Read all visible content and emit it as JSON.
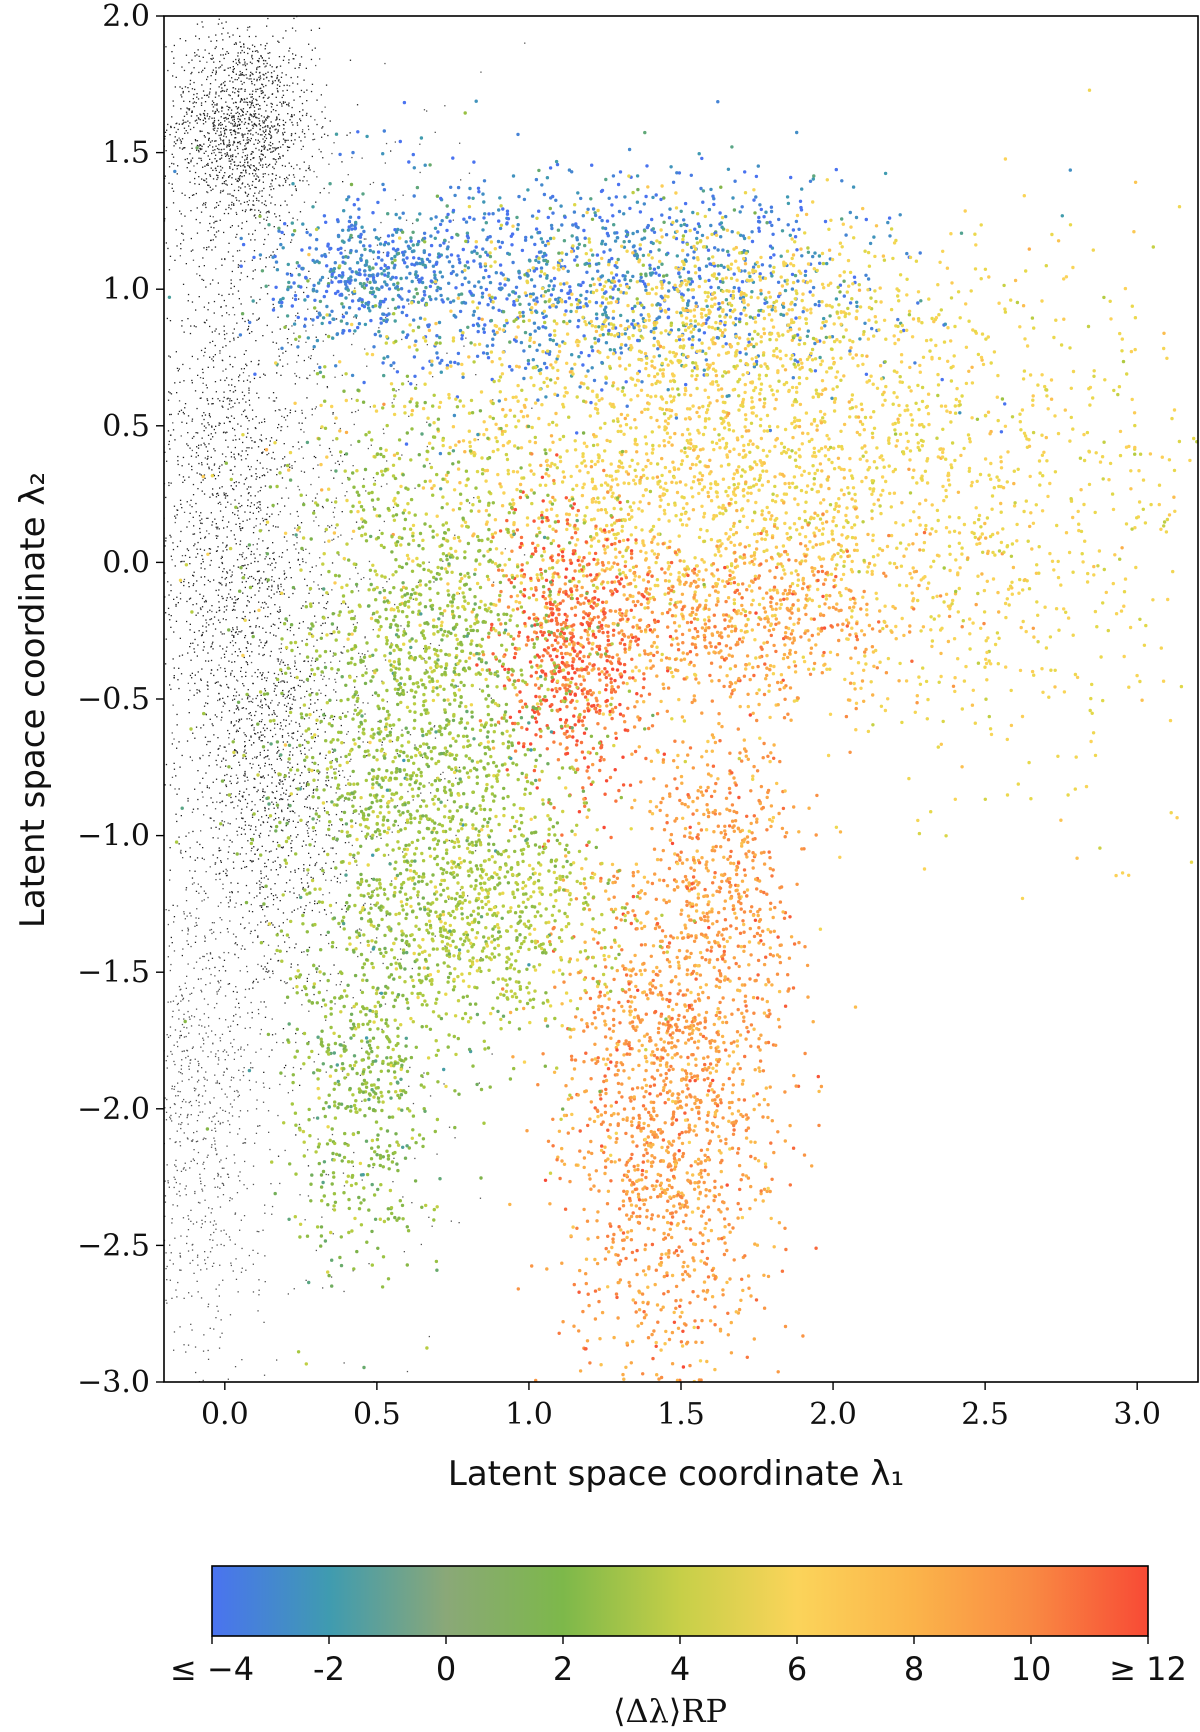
{
  "chart_data": {
    "type": "scatter",
    "xlabel": "Latent space coordinate λ₁",
    "ylabel": "Latent space coordinate λ₂",
    "xlim": [
      -0.2,
      3.2
    ],
    "ylim": [
      -3.0,
      2.0
    ],
    "x_ticks": [
      "0.0",
      "0.5",
      "1.0",
      "1.5",
      "2.0",
      "2.5",
      "3.0"
    ],
    "y_ticks": [
      "2.0",
      "1.5",
      "1.0",
      "0.5",
      "0.0",
      "−0.5",
      "−1.0",
      "−1.5",
      "−2.0",
      "−2.5",
      "−3.0"
    ],
    "background_series": {
      "color": "#000000",
      "clusters": [
        {
          "cx": 0.05,
          "cy": 1.6,
          "sx": 0.12,
          "sy": 0.18,
          "n": 1400
        },
        {
          "cx": 0.0,
          "cy": 0.2,
          "sx": 0.15,
          "sy": 0.6,
          "n": 1500
        },
        {
          "cx": 0.15,
          "cy": -0.8,
          "sx": 0.12,
          "sy": 0.4,
          "n": 900
        },
        {
          "cx": -0.1,
          "cy": -2.0,
          "sx": 0.12,
          "sy": 0.5,
          "n": 900
        },
        {
          "cx": 0.3,
          "cy": -0.3,
          "sx": 0.25,
          "sy": 1.2,
          "n": 1000
        }
      ]
    },
    "colored_clusters": [
      {
        "name": "blue upper band",
        "cx": 1.2,
        "cy": 1.05,
        "sx": 0.5,
        "sy": 0.2,
        "value": -3,
        "n": 1300
      },
      {
        "name": "blue left",
        "cx": 0.45,
        "cy": 1.05,
        "sx": 0.15,
        "sy": 0.12,
        "value": -3,
        "n": 350
      },
      {
        "name": "yellow fan",
        "cx": 1.6,
        "cy": 0.3,
        "sx": 0.55,
        "sy": 0.35,
        "value": 5.5,
        "n": 2200
      },
      {
        "name": "yellow tail",
        "cx": 2.6,
        "cy": 0.1,
        "sx": 0.35,
        "sy": 0.5,
        "value": 5,
        "n": 500
      },
      {
        "name": "yellow upper",
        "cx": 1.6,
        "cy": 0.9,
        "sx": 0.4,
        "sy": 0.2,
        "value": 5,
        "n": 700
      },
      {
        "name": "red knee",
        "cx": 1.15,
        "cy": -0.3,
        "sx": 0.12,
        "sy": 0.25,
        "value": 11,
        "n": 700
      },
      {
        "name": "orange arm",
        "cx": 1.7,
        "cy": -0.2,
        "sx": 0.3,
        "sy": 0.15,
        "value": 9,
        "n": 600
      },
      {
        "name": "orange leg",
        "cx": 1.45,
        "cy": -2.0,
        "sx": 0.18,
        "sy": 0.55,
        "value": 9,
        "n": 1600
      },
      {
        "name": "orange upper leg",
        "cx": 1.65,
        "cy": -1.2,
        "sx": 0.12,
        "sy": 0.35,
        "value": 9,
        "n": 500
      },
      {
        "name": "green body",
        "cx": 0.65,
        "cy": -0.6,
        "sx": 0.25,
        "sy": 0.6,
        "value": 1.5,
        "n": 2200
      },
      {
        "name": "green tail",
        "cx": 0.45,
        "cy": -1.9,
        "sx": 0.12,
        "sy": 0.35,
        "value": 1.0,
        "n": 500
      },
      {
        "name": "green lower",
        "cx": 0.9,
        "cy": -1.3,
        "sx": 0.2,
        "sy": 0.2,
        "value": 2.5,
        "n": 500
      }
    ],
    "colorbar": {
      "label": "⟨Δλ⟩RP",
      "range": [
        -4,
        12
      ],
      "tick_values": [
        -4,
        -2,
        0,
        2,
        4,
        6,
        8,
        10,
        12
      ],
      "tick_labels": [
        "≤ −4",
        "-2",
        "0",
        "2",
        "4",
        "6",
        "8",
        "10",
        "≥ 12"
      ],
      "colors": [
        "#4a73f0",
        "#3f9bb0",
        "#7db24a",
        "#a6c840",
        "#e6d94a",
        "#fbd45a",
        "#fbb44a",
        "#f98a43",
        "#f84a35"
      ]
    }
  }
}
